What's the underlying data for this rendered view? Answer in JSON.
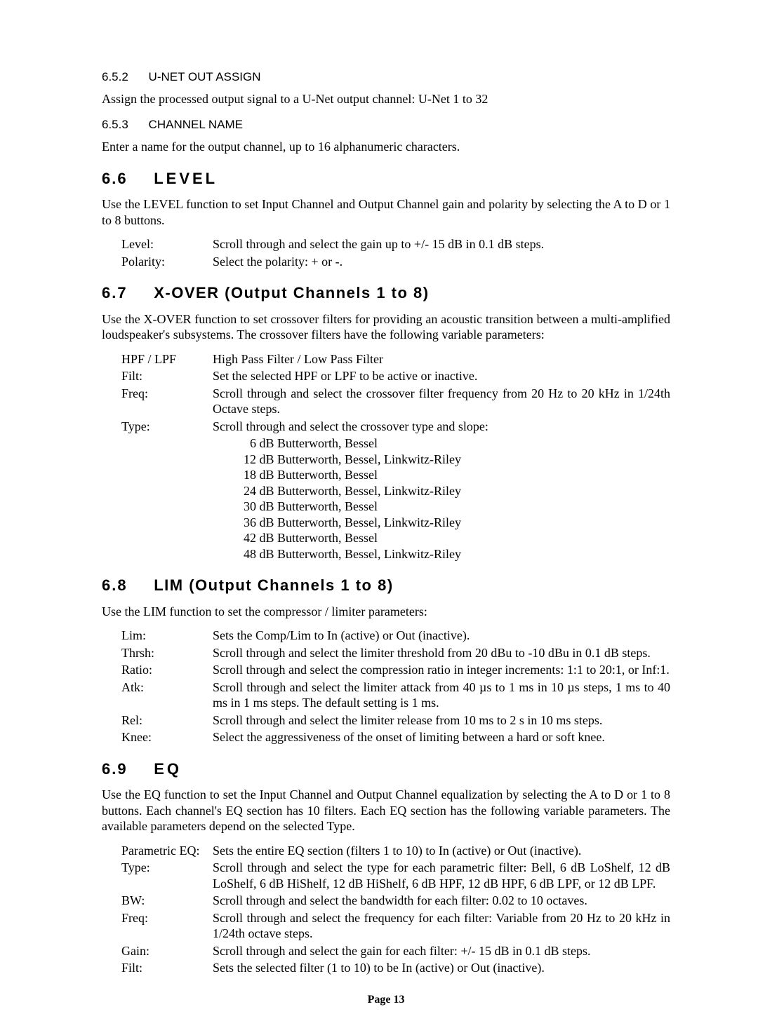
{
  "pageNumber": "Page 13",
  "s652": {
    "num": "6.5.2",
    "title": "U-NET OUT ASSIGN",
    "body": "Assign the processed output signal to a U-Net output channel: U-Net 1 to 32"
  },
  "s653": {
    "num": "6.5.3",
    "title": "CHANNEL NAME",
    "body": "Enter a name for the output channel, up to 16 alphanumeric characters."
  },
  "s66": {
    "num": "6.6",
    "title": "LEVEL",
    "body": "Use the LEVEL function to set Input Channel and Output Channel gain and polarity by selecting the A to D or 1 to 8 buttons.",
    "defs": [
      {
        "term": "Level:",
        "desc": "Scroll through and select the gain up to +/- 15 dB in 0.1 dB steps."
      },
      {
        "term": "Polarity:",
        "desc": "Select the polarity: + or  -."
      }
    ]
  },
  "s67": {
    "num": "6.7",
    "title": "X-OVER (Output Channels 1 to 8)",
    "body": "Use the X-OVER function to set crossover filters for providing an acoustic transition between a multi-amplified loudspeaker's subsystems. The crossover filters have the following variable parameters:",
    "defs": [
      {
        "term": "HPF / LPF",
        "desc": "High Pass Filter / Low Pass Filter"
      },
      {
        "term": "Filt:",
        "desc": "Set the selected HPF or LPF to be active or inactive."
      },
      {
        "term": "Freq:",
        "desc": "Scroll through and select the crossover filter frequency from 20 Hz to 20 kHz in 1/24th Octave steps."
      },
      {
        "term": "Type:",
        "desc": "Scroll through and select the crossover type and slope:"
      }
    ],
    "slopes": [
      "  6 dB Butterworth, Bessel",
      "12 dB Butterworth, Bessel, Linkwitz-Riley",
      "18 dB Butterworth, Bessel",
      "24 dB Butterworth, Bessel, Linkwitz-Riley",
      "30 dB Butterworth, Bessel",
      "36 dB Butterworth, Bessel, Linkwitz-Riley",
      "42 dB Butterworth, Bessel",
      "48 dB Butterworth, Bessel, Linkwitz-Riley"
    ]
  },
  "s68": {
    "num": "6.8",
    "title": "LIM (Output Channels 1 to 8)",
    "body": "Use the LIM function to set the compressor / limiter parameters:",
    "defs": [
      {
        "term": "Lim:",
        "desc": "Sets the Comp/Lim to In (active) or Out (inactive)."
      },
      {
        "term": "Thrsh:",
        "desc": "Scroll through and select the limiter threshold from 20 dBu to -10 dBu in 0.1 dB steps."
      },
      {
        "term": "Ratio:",
        "desc": "Scroll through and select the compression ratio in integer increments: 1:1 to 20:1, or Inf:1."
      },
      {
        "term": "Atk:",
        "desc": "Scroll through and select the limiter attack from 40 µs to 1 ms in 10 µs steps, 1 ms to 40 ms in 1 ms steps.  The default setting is 1 ms."
      },
      {
        "term": "Rel:",
        "desc": "Scroll through and select the limiter release from 10 ms to 2 s in 10 ms steps."
      },
      {
        "term": "Knee:",
        "desc": "Select the aggressiveness of the onset of limiting between a hard or soft knee."
      }
    ]
  },
  "s69": {
    "num": "6.9",
    "title": "EQ",
    "body": "Use the EQ function to set the Input Channel and Output Channel equalization by selecting the A to D or 1 to 8 buttons. Each channel's EQ section has 10 filters. Each EQ section has the following variable parameters. The available parameters depend on the selected Type.",
    "defs": [
      {
        "term": "Parametric EQ:",
        "desc": "Sets the entire EQ section (filters 1 to 10) to In (active) or Out (inactive)."
      },
      {
        "term": "Type:",
        "desc": "Scroll through and select the type for each parametric filter: Bell, 6 dB LoShelf, 12 dB LoShelf, 6 dB HiShelf, 12 dB HiShelf, 6 dB HPF, 12 dB HPF, 6 dB LPF, or 12 dB LPF."
      },
      {
        "term": "BW:",
        "desc": "Scroll through and select the bandwidth for each filter: 0.02 to 10 octaves."
      },
      {
        "term": "Freq:",
        "desc": "Scroll through and select the frequency for each filter: Variable from 20 Hz to 20 kHz in 1/24th octave steps."
      },
      {
        "term": "Gain:",
        "desc": "Scroll through and select the gain for each filter: +/- 15 dB in 0.1 dB steps."
      },
      {
        "term": "Filt:",
        "desc": "Sets the selected filter (1 to 10) to be In (active) or Out (inactive)."
      }
    ]
  }
}
